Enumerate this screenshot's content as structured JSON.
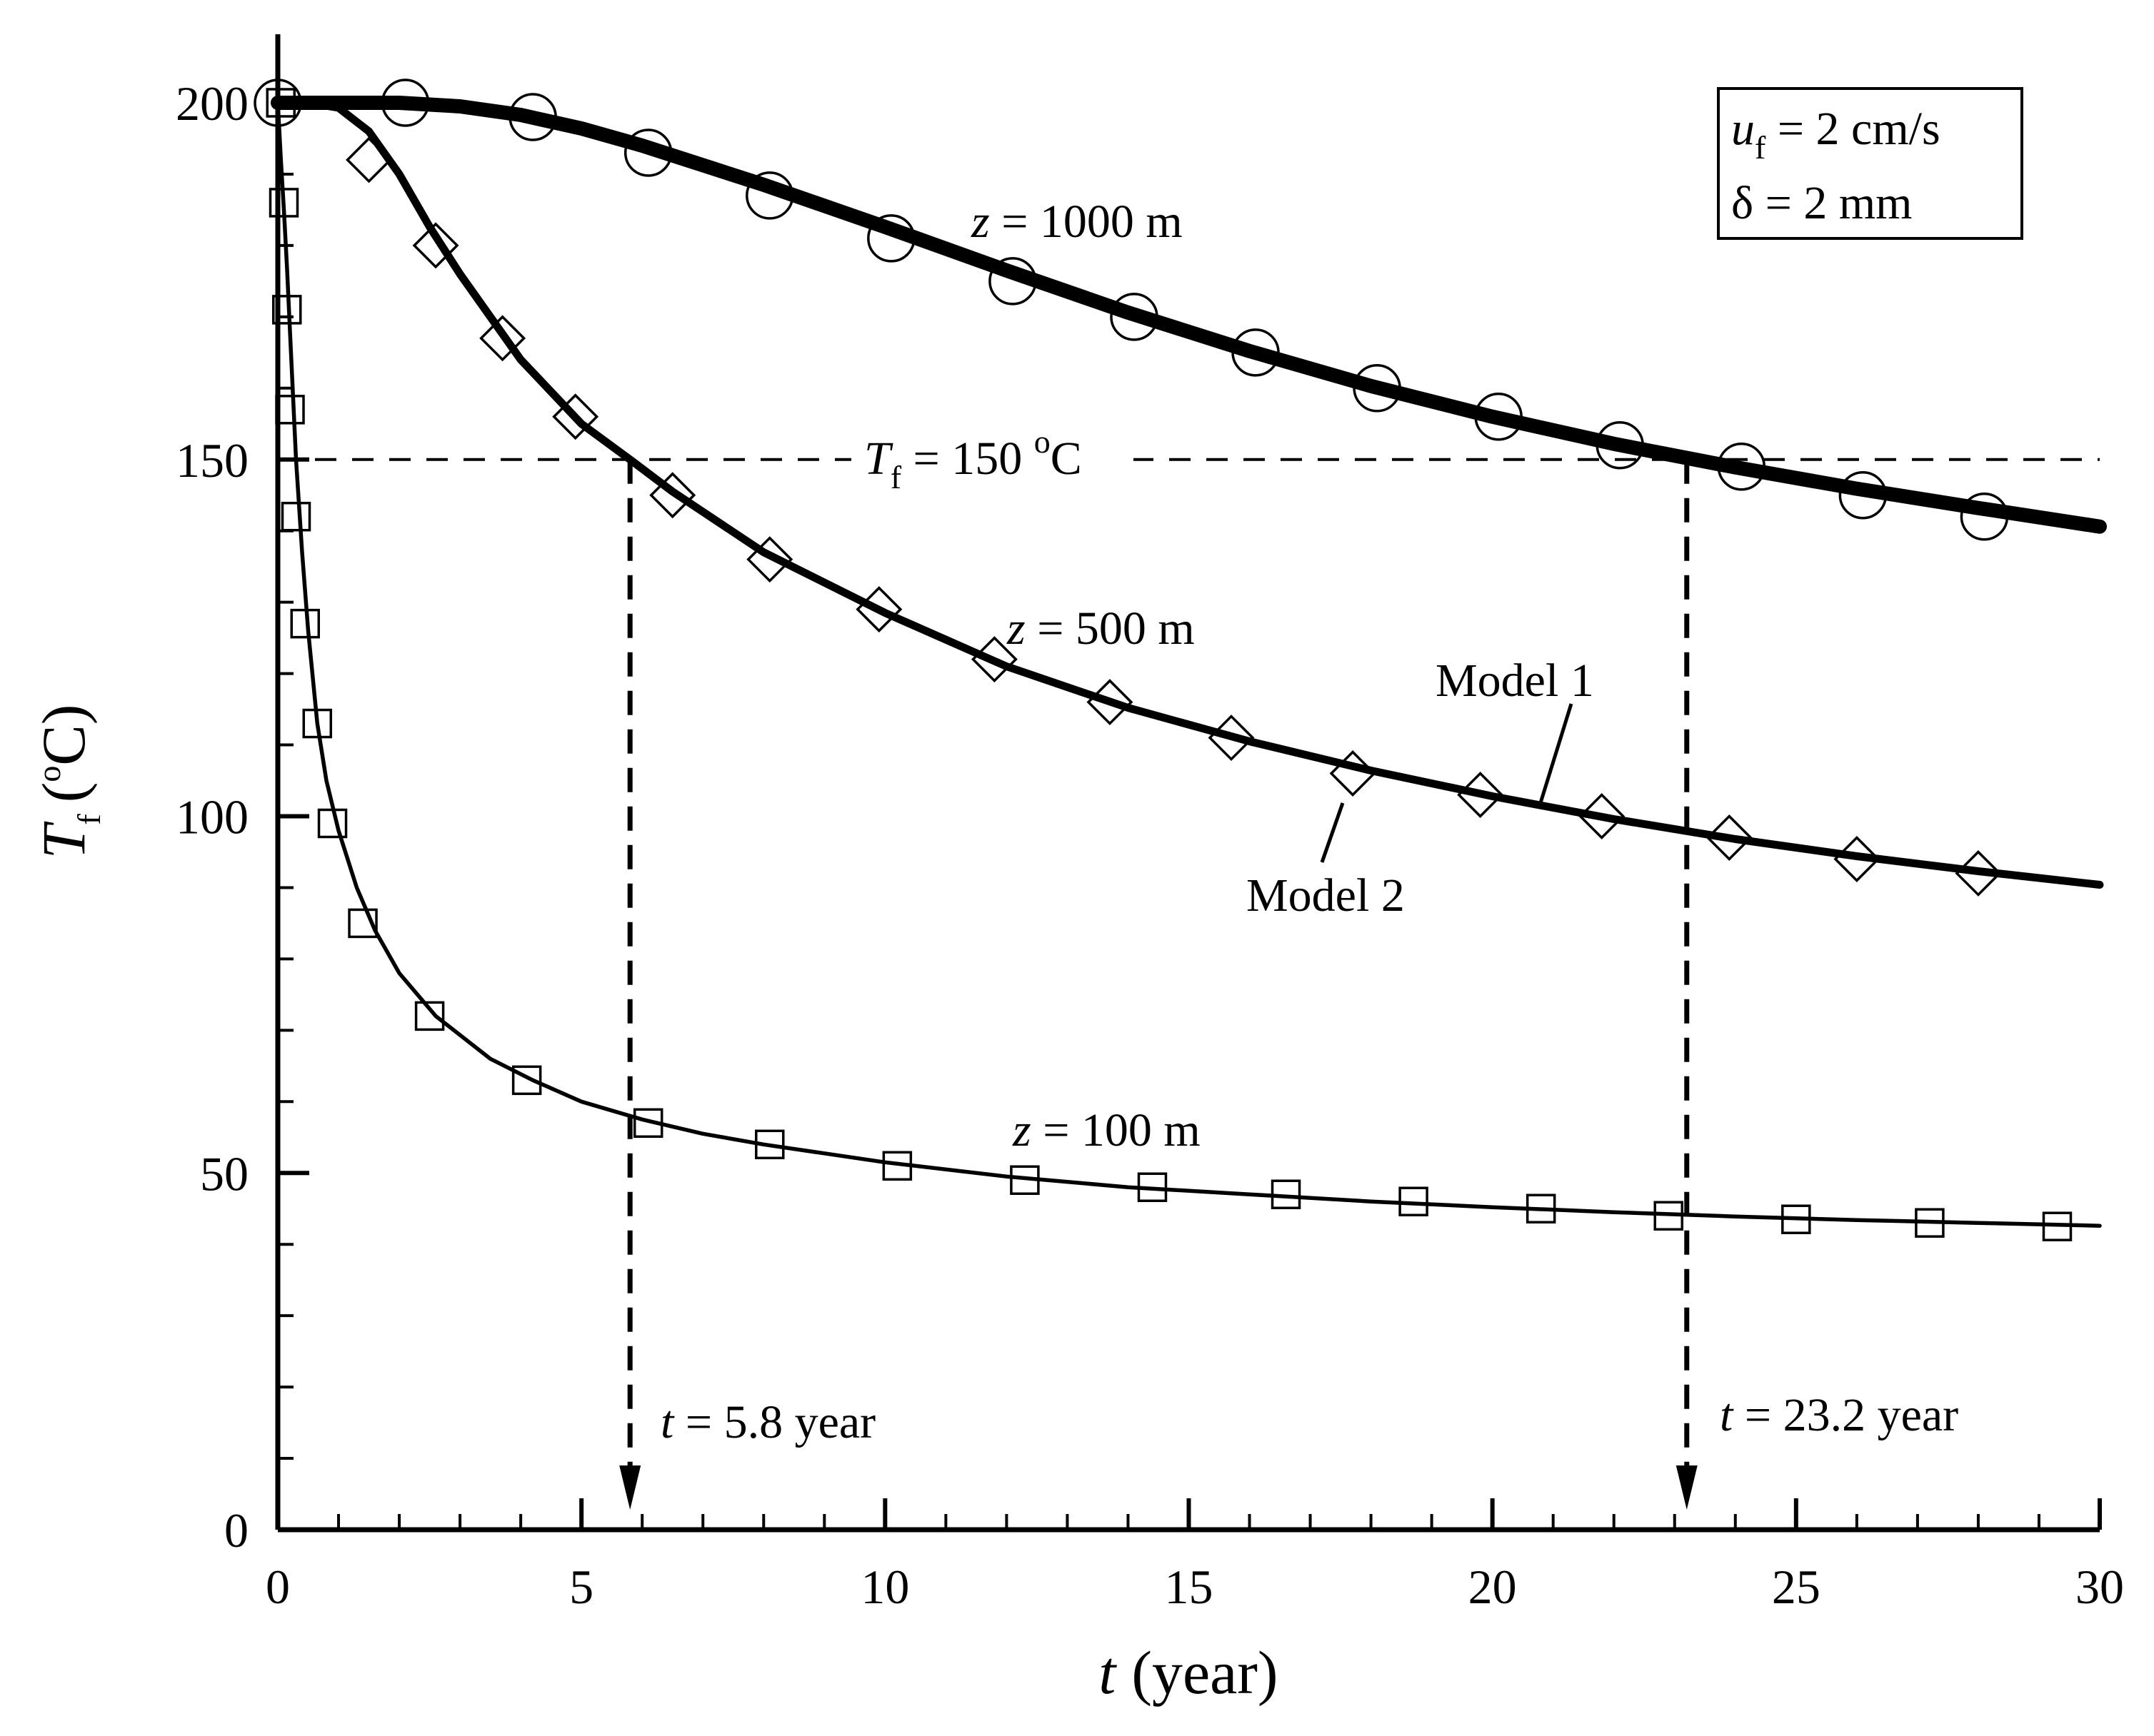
{
  "chart_data": {
    "type": "line",
    "xlabel": {
      "var": "t",
      "unit": "(year)"
    },
    "ylabel": {
      "var": "T",
      "sub": "f",
      "unit_open": "(",
      "unit_sup": "o",
      "unit_rest": "C)"
    },
    "xlim": [
      0,
      30
    ],
    "ylim": [
      0,
      200
    ],
    "xticks": [
      0,
      5,
      10,
      15,
      20,
      25,
      30
    ],
    "yticks": [
      0,
      50,
      100,
      150,
      200
    ],
    "xtick_labels": [
      "0",
      "5",
      "10",
      "15",
      "20",
      "25",
      "30"
    ],
    "ytick_labels": [
      "0",
      "50",
      "100",
      "150",
      "200"
    ],
    "grid": false,
    "series": [
      {
        "name": "z = 1000 m",
        "label": {
          "var": "z",
          "rest": " = 1000 m"
        },
        "marker": "circle",
        "line": "thick",
        "line_x": [
          0,
          1,
          2,
          3,
          4,
          5,
          6,
          8,
          10,
          12,
          14,
          16,
          18,
          20,
          22,
          24,
          26,
          28,
          30
        ],
        "line_y": [
          200,
          200,
          200,
          199.5,
          198.3,
          196.4,
          194,
          188.5,
          182.6,
          176.5,
          170.6,
          165.2,
          160.3,
          156,
          152.2,
          148.9,
          145.9,
          143.2,
          140.6
        ],
        "markers_x": [
          0,
          2.1,
          4.2,
          6.1,
          8.1,
          10.1,
          12.1,
          14.1,
          16.1,
          18.1,
          20.1,
          22.1,
          24.1,
          26.1,
          28.1
        ],
        "markers_y": [
          200,
          200,
          198,
          193,
          187,
          181,
          175,
          170,
          165,
          160,
          156,
          152,
          149,
          145,
          142
        ]
      },
      {
        "name": "z = 500 m",
        "label": {
          "var": "z",
          "rest": " = 500 m"
        },
        "marker": "diamond",
        "line": "medium",
        "line_x": [
          0,
          0.5,
          1,
          1.5,
          2,
          2.5,
          3,
          4,
          5,
          5.8,
          6.5,
          8,
          10,
          12,
          14,
          16,
          18,
          20,
          22,
          24,
          26,
          28,
          30
        ],
        "line_y": [
          200,
          200,
          199.3,
          196,
          190,
          182.6,
          176,
          164,
          155,
          150,
          145.5,
          137,
          128.5,
          121,
          115.2,
          110.5,
          106.4,
          102.8,
          99.6,
          96.8,
          94.4,
          92.3,
          90.4
        ],
        "markers_x": [
          1.5,
          2.6,
          3.7,
          4.9,
          6.5,
          8.1,
          9.9,
          11.8,
          13.7,
          15.7,
          17.7,
          19.8,
          21.8,
          23.9,
          26,
          28
        ],
        "markers_y": [
          192,
          180,
          167,
          156,
          145,
          136,
          129,
          122,
          116,
          111,
          106,
          103,
          100,
          97,
          94,
          92
        ]
      },
      {
        "name": "z = 100 m",
        "label": {
          "var": "z",
          "rest": " = 100 m"
        },
        "marker": "square",
        "line": "thin",
        "line_x": [
          0,
          0.05,
          0.1,
          0.15,
          0.2,
          0.3,
          0.4,
          0.5,
          0.65,
          0.8,
          1,
          1.3,
          1.6,
          2,
          2.6,
          3.5,
          4.2,
          5,
          6,
          7,
          8,
          10,
          12,
          14,
          16,
          18,
          20,
          22,
          24,
          26,
          28,
          30
        ],
        "line_y": [
          200,
          192,
          185,
          177,
          168,
          150,
          137,
          126,
          113,
          105,
          98,
          90,
          84,
          78,
          72,
          66,
          63,
          60,
          57.5,
          55.5,
          54,
          51.5,
          49.5,
          48,
          47,
          46,
          45.2,
          44.5,
          43.9,
          43.4,
          43,
          42.6
        ],
        "markers_x": [
          0.05,
          0.1,
          0.15,
          0.2,
          0.3,
          0.45,
          0.65,
          0.9,
          1.4,
          2.5,
          4.1,
          6.1,
          8.1,
          10.2,
          12.3,
          14.4,
          16.6,
          18.7,
          20.8,
          22.9,
          25,
          27.2,
          29.3
        ],
        "markers_y": [
          200,
          186,
          171,
          157,
          142,
          127,
          113,
          99,
          85,
          72,
          63,
          57,
          54,
          51,
          49,
          48,
          47,
          46,
          45,
          44,
          43.5,
          43,
          42.5
        ]
      }
    ],
    "reference_line": {
      "y": 150,
      "style": "dashed",
      "label": {
        "var": "T",
        "sub": "f",
        "rest_a": " = 150 ",
        "sup": "o",
        "rest_b": "C"
      }
    },
    "drops": [
      {
        "x": 5.8,
        "label": {
          "var": "t",
          "rest": " = 5.8 year"
        }
      },
      {
        "x": 23.2,
        "label": {
          "var": "t",
          "rest": " = 23.2 year"
        }
      }
    ],
    "callouts": {
      "model1": "Model 1",
      "model2": "Model 2"
    },
    "params_box": {
      "line1": {
        "var": "u",
        "sub": "f",
        "rest": " = 2 cm/s"
      },
      "line2": "δ = 2 mm"
    },
    "colors": {
      "ink": "#000000",
      "background": "#ffffff"
    }
  }
}
